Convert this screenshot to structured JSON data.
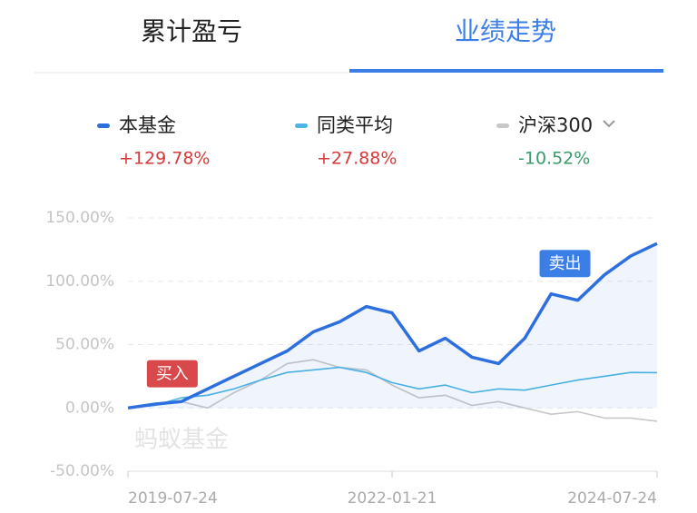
{
  "tabs": [
    {
      "label": "累计盈亏",
      "active": false
    },
    {
      "label": "业绩走势",
      "active": true
    }
  ],
  "watermark": "蚂蚁基金",
  "chart_data": {
    "type": "line",
    "x": [
      "2019-07-24",
      "2019-10-24",
      "2020-01-24",
      "2020-04-24",
      "2020-07-24",
      "2020-10-24",
      "2021-01-24",
      "2021-04-24",
      "2021-07-24",
      "2021-10-24",
      "2022-01-21",
      "2022-04-24",
      "2022-07-24",
      "2022-10-24",
      "2023-01-24",
      "2023-04-24",
      "2023-07-24",
      "2023-10-24",
      "2024-01-24",
      "2024-04-24",
      "2024-07-24"
    ],
    "series": [
      {
        "name": "本基金",
        "color": "#2e6fdf",
        "total": 129.78,
        "total_label": "+129.78%",
        "values": [
          0,
          3,
          5,
          15,
          25,
          35,
          45,
          60,
          68,
          80,
          75,
          45,
          55,
          40,
          35,
          55,
          90,
          85,
          105,
          120,
          129.78
        ]
      },
      {
        "name": "同类平均",
        "color": "#4cb5e6",
        "total": 27.88,
        "total_label": "+27.88%",
        "values": [
          0,
          2,
          8,
          10,
          15,
          22,
          28,
          30,
          32,
          28,
          20,
          15,
          18,
          12,
          15,
          14,
          18,
          22,
          25,
          28,
          27.88
        ]
      },
      {
        "name": "沪深300",
        "color": "#c8c8c8",
        "total": -10.52,
        "total_label": "-10.52%",
        "values": [
          0,
          2,
          5,
          0,
          12,
          22,
          35,
          38,
          32,
          30,
          18,
          8,
          10,
          2,
          5,
          0,
          -5,
          -3,
          -8,
          -8,
          -10.52
        ]
      }
    ],
    "xlim": [
      "2019-07-24",
      "2024-07-24"
    ],
    "xticks": [
      "2019-07-24",
      "2022-01-21",
      "2024-07-24"
    ],
    "ylim": [
      -50,
      150
    ],
    "yticks": [
      {
        "value": -50,
        "label": "-50.00%"
      },
      {
        "value": 0,
        "label": "0.00%"
      },
      {
        "value": 50,
        "label": "50.00%"
      },
      {
        "value": 100,
        "label": "100.00%"
      },
      {
        "value": 150,
        "label": "150.00%"
      }
    ],
    "grid": true,
    "annotations": [
      {
        "text": "买入",
        "x": "2019-12-24",
        "y": 27,
        "color": "#d9484a"
      },
      {
        "text": "卖出",
        "x": "2023-09-10",
        "y": 114,
        "color": "#3a7ee6"
      }
    ]
  }
}
